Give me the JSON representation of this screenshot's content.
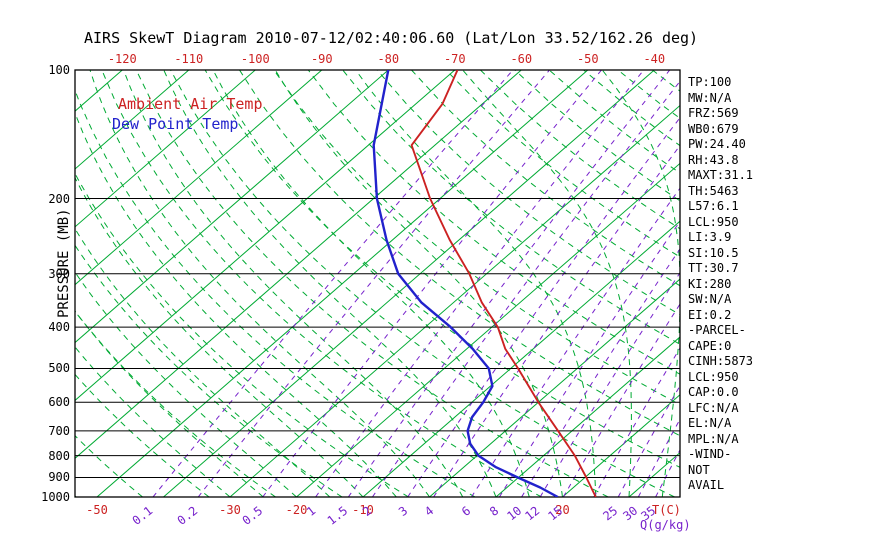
{
  "title": "AIRS SkewT Diagram 2010-07-12/02:40:06.60 (Lat/Lon 33.52/162.26 deg)",
  "legend": {
    "ambient": "Ambient Air Temp",
    "dew_point": "Dew Point Temp"
  },
  "colors": {
    "ambient_temp": "#cc2222",
    "dew_point": "#2222cc",
    "isotherm_green": "#00aa33",
    "mixing_purple": "#7722cc",
    "axis_black": "#000000"
  },
  "axes": {
    "pressure_label": "PRESSURE (MB)",
    "pressure_ticks": [
      100,
      200,
      300,
      400,
      500,
      600,
      700,
      800,
      900,
      1000
    ],
    "top_temp_ticks": [
      -120,
      -110,
      -100,
      -90,
      -80,
      -70,
      -60,
      -50,
      -40
    ],
    "bottom_temp_ticks": [
      -50,
      -30,
      -20,
      -10,
      20
    ],
    "temp_unit_label": "T(C)",
    "mixing_ratio_ticks": [
      0.1,
      0.2,
      0.5,
      1,
      1.5,
      2,
      3,
      4,
      6,
      8,
      10,
      12,
      15,
      25,
      30,
      35
    ],
    "mixing_unit_label": "Q(g/kg)"
  },
  "stats": [
    "TP:100",
    "MW:N/A",
    "FRZ:569",
    "WB0:679",
    "PW:24.40",
    "RH:43.8",
    "MAXT:31.1",
    "TH:5463",
    "L57:6.1",
    "LCL:950",
    "LI:3.9",
    "SI:10.5",
    "TT:30.7",
    "KI:280",
    "SW:N/A",
    "EI:0.2",
    "-PARCEL-",
    "CAPE:0",
    "CINH:5873",
    "LCL:950",
    "CAP:0.0",
    "LFC:N/A",
    "EL:N/A",
    "MPL:N/A",
    "-WIND-",
    "NOT",
    "AVAIL"
  ],
  "chart_data": {
    "type": "line",
    "title": "AIRS SkewT Diagram",
    "x_axis": {
      "label": "T(C)",
      "style": "skewed-temperature",
      "surface_range_c": [
        -50,
        40
      ]
    },
    "y_axis": {
      "label": "PRESSURE (MB)",
      "scale": "log",
      "range_mb": [
        100,
        1000
      ]
    },
    "grid": {
      "isotherms_c": {
        "start": -130,
        "end": 40,
        "step": 10
      },
      "dry_adiabats_theta_k": {
        "start": 220,
        "end": 460,
        "step": 10
      },
      "moist_adiabats_surface_c": {
        "start": -30,
        "end": 50,
        "step": 5
      },
      "mixing_ratio_g_kg": [
        0.1,
        0.2,
        0.5,
        1,
        1.5,
        2,
        3,
        4,
        6,
        8,
        10,
        12,
        15,
        20,
        25,
        30,
        35
      ]
    },
    "series": [
      {
        "name": "Ambient Air Temp",
        "color": "#cc2222",
        "points_p_t": [
          [
            100,
            -69.6
          ],
          [
            120,
            -66.0
          ],
          [
            150,
            -63.5
          ],
          [
            200,
            -51.5
          ],
          [
            250,
            -41.4
          ],
          [
            300,
            -32.6
          ],
          [
            350,
            -25.8
          ],
          [
            400,
            -19.1
          ],
          [
            450,
            -14.2
          ],
          [
            500,
            -8.9
          ],
          [
            600,
            0.0
          ],
          [
            700,
            7.9
          ],
          [
            800,
            14.7
          ],
          [
            900,
            20.2
          ],
          [
            1000,
            25.0
          ]
        ]
      },
      {
        "name": "Dew Point Temp",
        "color": "#2222cc",
        "points_p_t": [
          [
            100,
            -80.0
          ],
          [
            150,
            -69.2
          ],
          [
            200,
            -59.5
          ],
          [
            250,
            -50.9
          ],
          [
            300,
            -43.3
          ],
          [
            350,
            -34.9
          ],
          [
            400,
            -26.2
          ],
          [
            450,
            -19.1
          ],
          [
            500,
            -13.3
          ],
          [
            550,
            -9.7
          ],
          [
            600,
            -8.3
          ],
          [
            650,
            -7.4
          ],
          [
            700,
            -5.7
          ],
          [
            750,
            -3.1
          ],
          [
            800,
            0.2
          ],
          [
            850,
            4.7
          ],
          [
            900,
            9.9
          ],
          [
            950,
            15.0
          ],
          [
            1000,
            19.3
          ]
        ]
      }
    ]
  }
}
